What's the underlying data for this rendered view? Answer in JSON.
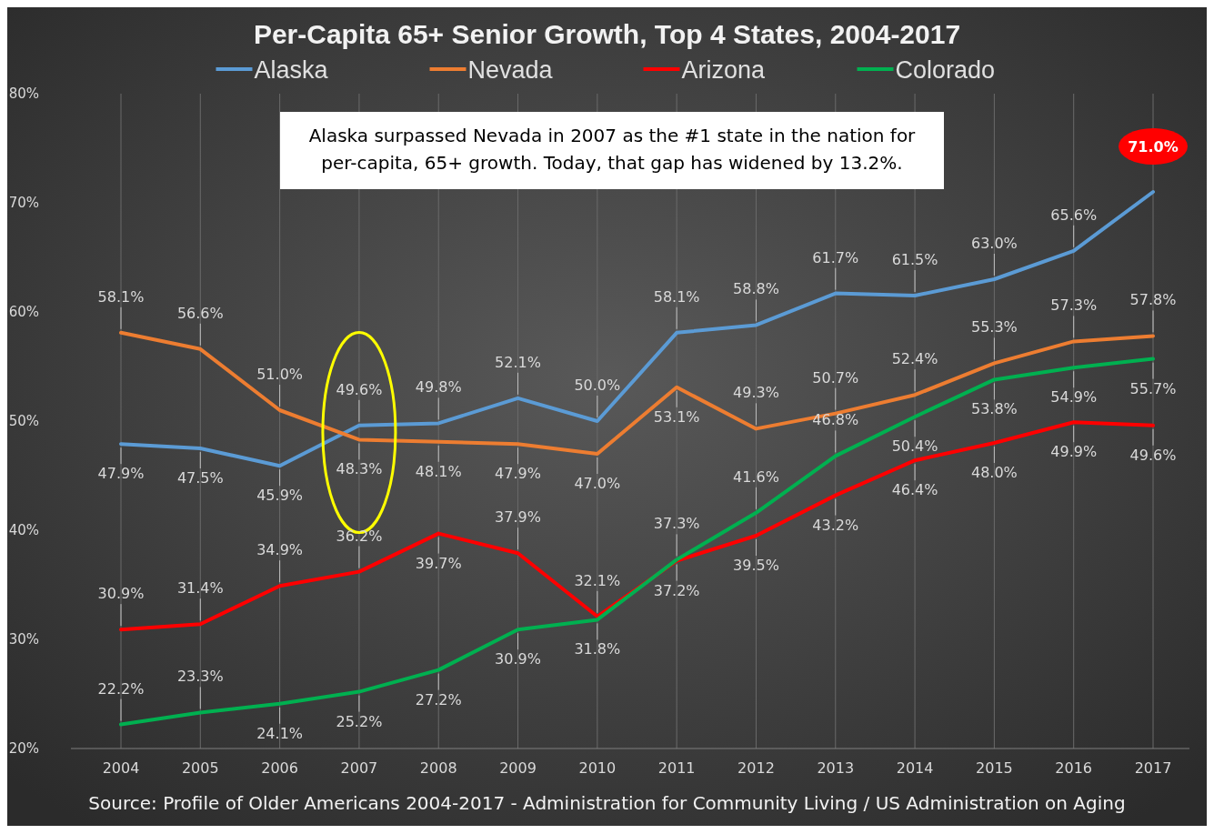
{
  "chart_data": {
    "type": "line",
    "title": "Per-Capita 65+ Senior Growth, Top 4 States, 2004-2017",
    "categories": [
      "2004",
      "2005",
      "2006",
      "2007",
      "2008",
      "2009",
      "2010",
      "2011",
      "2012",
      "2013",
      "2014",
      "2015",
      "2016",
      "2017"
    ],
    "series": [
      {
        "name": "Alaska",
        "color": "#5b9bd5",
        "values": [
          47.9,
          47.5,
          45.9,
          49.6,
          49.8,
          52.1,
          50.0,
          58.1,
          58.8,
          61.7,
          61.5,
          63.0,
          65.6,
          71.0
        ],
        "value_labels": [
          "47.9%",
          "47.5%",
          "45.9%",
          "49.6%",
          "49.8%",
          "52.1%",
          "50.0%",
          "58.1%",
          "58.8%",
          "61.7%",
          "61.5%",
          "63.0%",
          "65.6%",
          "71.0%"
        ]
      },
      {
        "name": "Nevada",
        "color": "#ed7d31",
        "values": [
          58.1,
          56.6,
          51.0,
          48.3,
          48.1,
          47.9,
          47.0,
          53.1,
          49.3,
          50.7,
          52.4,
          55.3,
          57.3,
          57.8
        ],
        "value_labels": [
          "58.1%",
          "56.6%",
          "51.0%",
          "48.3%",
          "48.1%",
          "47.9%",
          "47.0%",
          "53.1%",
          "49.3%",
          "50.7%",
          "52.4%",
          "55.3%",
          "57.3%",
          "57.8%"
        ]
      },
      {
        "name": "Arizona",
        "color": "#ff0000",
        "values": [
          30.9,
          31.4,
          34.9,
          36.2,
          39.7,
          37.9,
          32.1,
          37.2,
          39.5,
          43.2,
          46.4,
          48.0,
          49.9,
          49.6
        ],
        "value_labels": [
          "30.9%",
          "31.4%",
          "34.9%",
          "36.2%",
          "39.7%",
          "37.9%",
          "32.1%",
          "37.2%",
          "39.5%",
          "43.2%",
          "46.4%",
          "48.0%",
          "49.9%",
          "49.6%"
        ]
      },
      {
        "name": "Colorado",
        "color": "#00b050",
        "values": [
          22.2,
          23.3,
          24.1,
          25.2,
          27.2,
          30.9,
          31.8,
          37.3,
          41.6,
          46.8,
          50.4,
          53.8,
          54.9,
          55.7
        ],
        "value_labels": [
          "22.2%",
          "23.3%",
          "24.1%",
          "25.2%",
          "27.2%",
          "30.9%",
          "31.8%",
          "37.3%",
          "41.6%",
          "46.8%",
          "50.4%",
          "53.8%",
          "54.9%",
          "55.7%"
        ]
      }
    ],
    "ylim": [
      20,
      80
    ],
    "yticks": [
      {
        "value": 20,
        "label": "20%"
      },
      {
        "value": 30,
        "label": "30%"
      },
      {
        "value": 40,
        "label": "40%"
      },
      {
        "value": 50,
        "label": "50%"
      },
      {
        "value": 60,
        "label": "60%"
      },
      {
        "value": 70,
        "label": "70%"
      },
      {
        "value": 80,
        "label": "80%"
      }
    ],
    "grid": "x",
    "legend": "top",
    "marker": "none",
    "line_style": "solid",
    "annotations": [
      "Alaska surpassed Nevada in 2007 as the #1 state in the nation for\nper-capita, 65+ growth.  Today, that gap has widened by 13.2%.",
      "Source:  Profile of Older Americans 2004-2017 - Administration for Community Living / US Administration on Aging"
    ]
  }
}
